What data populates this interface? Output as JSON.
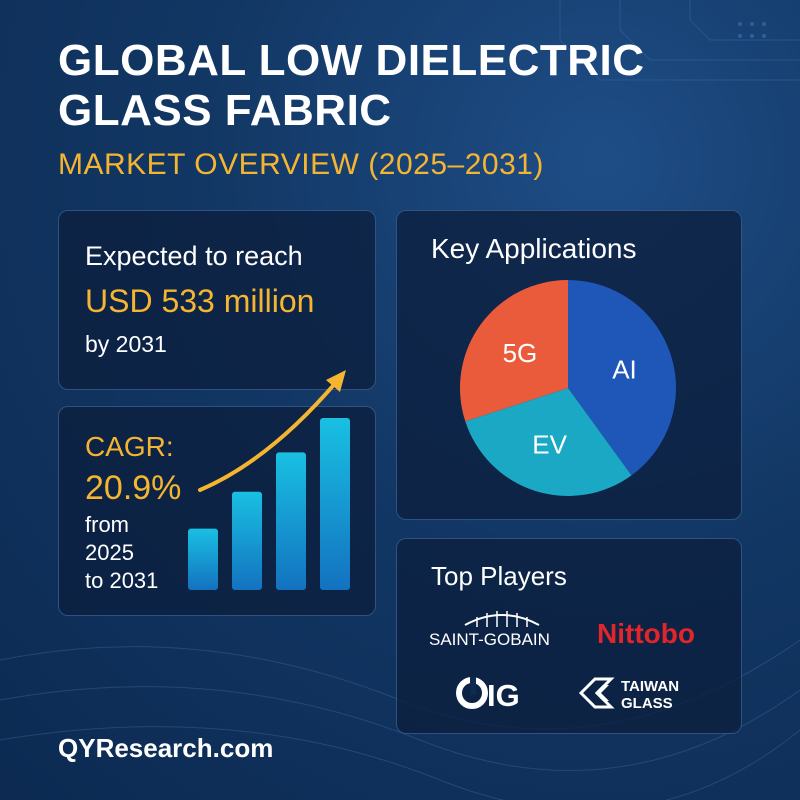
{
  "header": {
    "title_line1": "GLOBAL LOW DIELECTRIC",
    "title_line2": "GLASS FABRIC",
    "subtitle": "MARKET OVERVIEW (2025–2031)"
  },
  "reach_card": {
    "prefix": "Expected to reach",
    "value": "USD 533 million",
    "suffix": "by 2031"
  },
  "cagr_card": {
    "label": "CAGR:",
    "value": "20.9%",
    "from_line1": "from",
    "from_line2": "2025",
    "from_line3": "to 2031"
  },
  "applications_card": {
    "heading": "Key Applications"
  },
  "players_card": {
    "heading": "Top Players",
    "logos": [
      "SAINT-GOBAIN",
      "Nittobo",
      "IG",
      "TAIWAN",
      "GLASS"
    ]
  },
  "footer": {
    "site": "QYResearch.com"
  },
  "colors": {
    "accent": "#f5b531",
    "bar": "#17a6d4",
    "pie_5g": "#ea5b3c",
    "pie_ai": "#1f57b8",
    "pie_ev": "#1ba8c4",
    "nittobo_red": "#e0262a"
  },
  "chart_data": [
    {
      "type": "bar",
      "title": "",
      "categories": [
        "",
        "",
        "",
        ""
      ],
      "values": [
        1,
        1.6,
        2.24,
        2.8
      ],
      "trend_arrow": "rising",
      "unit": "illustrative growth levels, no axis printed"
    },
    {
      "type": "pie",
      "title": "Key Applications",
      "labels": [
        "5G",
        "AI",
        "EV"
      ],
      "values": [
        30,
        40,
        30
      ],
      "colors": [
        "#ea5b3c",
        "#1f57b8",
        "#1ba8c4"
      ]
    }
  ]
}
